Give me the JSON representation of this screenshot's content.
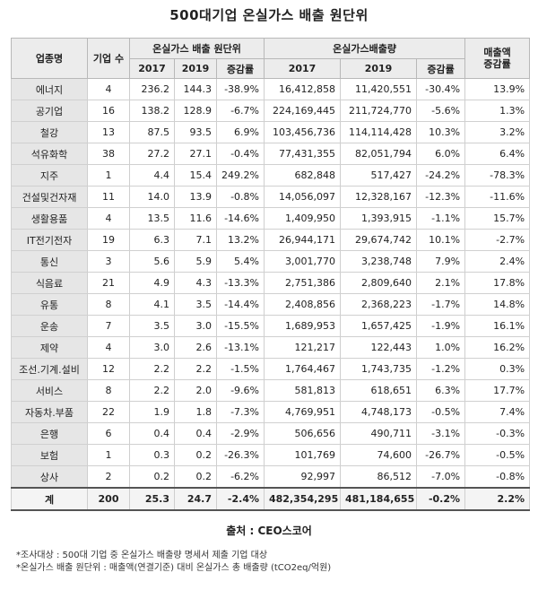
{
  "title": "500대기업 온실가스 배출 원단위",
  "headers": {
    "industry": "업종명",
    "company_count": "기업 수",
    "intensity_group": "온실가스 배출 원단위",
    "emission_group": "온실가스배출량",
    "sales_growth": "매출액\n증감률",
    "y2017": "2017",
    "y2019": "2019",
    "change": "증감률"
  },
  "rows": [
    {
      "industry": "에너지",
      "count": "4",
      "int2017": "236.2",
      "int2019": "144.3",
      "int_change": "-38.9%",
      "em2017": "16,412,858",
      "em2019": "11,420,551",
      "em_change": "-30.4%",
      "sales": "13.9%"
    },
    {
      "industry": "공기업",
      "count": "16",
      "int2017": "138.2",
      "int2019": "128.9",
      "int_change": "-6.7%",
      "em2017": "224,169,445",
      "em2019": "211,724,770",
      "em_change": "-5.6%",
      "sales": "1.3%"
    },
    {
      "industry": "철강",
      "count": "13",
      "int2017": "87.5",
      "int2019": "93.5",
      "int_change": "6.9%",
      "em2017": "103,456,736",
      "em2019": "114,114,428",
      "em_change": "10.3%",
      "sales": "3.2%"
    },
    {
      "industry": "석유화학",
      "count": "38",
      "int2017": "27.2",
      "int2019": "27.1",
      "int_change": "-0.4%",
      "em2017": "77,431,355",
      "em2019": "82,051,794",
      "em_change": "6.0%",
      "sales": "6.4%"
    },
    {
      "industry": "지주",
      "count": "1",
      "int2017": "4.4",
      "int2019": "15.4",
      "int_change": "249.2%",
      "em2017": "682,848",
      "em2019": "517,427",
      "em_change": "-24.2%",
      "sales": "-78.3%"
    },
    {
      "industry": "건설및건자재",
      "count": "11",
      "int2017": "14.0",
      "int2019": "13.9",
      "int_change": "-0.8%",
      "em2017": "14,056,097",
      "em2019": "12,328,167",
      "em_change": "-12.3%",
      "sales": "-11.6%"
    },
    {
      "industry": "생활용품",
      "count": "4",
      "int2017": "13.5",
      "int2019": "11.6",
      "int_change": "-14.6%",
      "em2017": "1,409,950",
      "em2019": "1,393,915",
      "em_change": "-1.1%",
      "sales": "15.7%"
    },
    {
      "industry": "IT전기전자",
      "count": "19",
      "int2017": "6.3",
      "int2019": "7.1",
      "int_change": "13.2%",
      "em2017": "26,944,171",
      "em2019": "29,674,742",
      "em_change": "10.1%",
      "sales": "-2.7%"
    },
    {
      "industry": "통신",
      "count": "3",
      "int2017": "5.6",
      "int2019": "5.9",
      "int_change": "5.4%",
      "em2017": "3,001,770",
      "em2019": "3,238,748",
      "em_change": "7.9%",
      "sales": "2.4%"
    },
    {
      "industry": "식음료",
      "count": "21",
      "int2017": "4.9",
      "int2019": "4.3",
      "int_change": "-13.3%",
      "em2017": "2,751,386",
      "em2019": "2,809,640",
      "em_change": "2.1%",
      "sales": "17.8%"
    },
    {
      "industry": "유통",
      "count": "8",
      "int2017": "4.1",
      "int2019": "3.5",
      "int_change": "-14.4%",
      "em2017": "2,408,856",
      "em2019": "2,368,223",
      "em_change": "-1.7%",
      "sales": "14.8%"
    },
    {
      "industry": "운송",
      "count": "7",
      "int2017": "3.5",
      "int2019": "3.0",
      "int_change": "-15.5%",
      "em2017": "1,689,953",
      "em2019": "1,657,425",
      "em_change": "-1.9%",
      "sales": "16.1%"
    },
    {
      "industry": "제약",
      "count": "4",
      "int2017": "3.0",
      "int2019": "2.6",
      "int_change": "-13.1%",
      "em2017": "121,217",
      "em2019": "122,443",
      "em_change": "1.0%",
      "sales": "16.2%"
    },
    {
      "industry": "조선.기계.설비",
      "count": "12",
      "int2017": "2.2",
      "int2019": "2.2",
      "int_change": "-1.5%",
      "em2017": "1,764,467",
      "em2019": "1,743,735",
      "em_change": "-1.2%",
      "sales": "0.3%"
    },
    {
      "industry": "서비스",
      "count": "8",
      "int2017": "2.2",
      "int2019": "2.0",
      "int_change": "-9.6%",
      "em2017": "581,813",
      "em2019": "618,651",
      "em_change": "6.3%",
      "sales": "17.7%"
    },
    {
      "industry": "자동차.부품",
      "count": "22",
      "int2017": "1.9",
      "int2019": "1.8",
      "int_change": "-7.3%",
      "em2017": "4,769,951",
      "em2019": "4,748,173",
      "em_change": "-0.5%",
      "sales": "7.4%"
    },
    {
      "industry": "은행",
      "count": "6",
      "int2017": "0.4",
      "int2019": "0.4",
      "int_change": "-2.9%",
      "em2017": "506,656",
      "em2019": "490,711",
      "em_change": "-3.1%",
      "sales": "-0.3%"
    },
    {
      "industry": "보험",
      "count": "1",
      "int2017": "0.3",
      "int2019": "0.2",
      "int_change": "-26.3%",
      "em2017": "101,769",
      "em2019": "74,600",
      "em_change": "-26.7%",
      "sales": "-0.5%"
    },
    {
      "industry": "상사",
      "count": "2",
      "int2017": "0.2",
      "int2019": "0.2",
      "int_change": "-6.2%",
      "em2017": "92,997",
      "em2019": "86,512",
      "em_change": "-7.0%",
      "sales": "-0.8%"
    }
  ],
  "total": {
    "industry": "계",
    "count": "200",
    "int2017": "25.3",
    "int2019": "24.7",
    "int_change": "-2.4%",
    "em2017": "482,354,295",
    "em2019": "481,184,655",
    "em_change": "-0.2%",
    "sales": "2.2%"
  },
  "source": "출처 : CEO스코어",
  "notes": [
    "*조사대상 : 500대 기업 중 온실가스 배출량 명세서 제출 기업 대상",
    "*온실가스 배출 원단위 : 매출액(연결기준) 대비 온실가스 총 배출량 (tCO2eq/억원)"
  ]
}
